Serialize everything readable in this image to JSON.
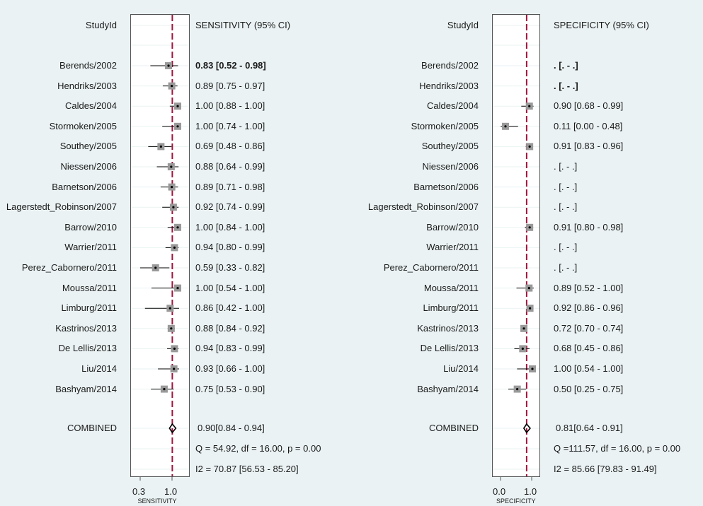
{
  "colors": {
    "background": "#eaf2f3",
    "pooled_line": "#a0143c",
    "marker": "#999999",
    "ci_line": "#000000"
  },
  "chart_data": [
    {
      "type": "forest",
      "measure": "SENSITIVITY",
      "header_study": "StudyId",
      "header_value": "SENSITIVITY (95% CI)",
      "axis_title": "SENSITIVITY",
      "xticks": [
        "0.3",
        "1.0"
      ],
      "xlim": [
        0.2,
        1.0
      ],
      "pooled_line": 0.9,
      "studies": [
        {
          "name": "Berends/2002",
          "est": 0.83,
          "lo": 0.52,
          "hi": 0.98,
          "text": "0.83 [0.52 - 0.98]"
        },
        {
          "name": "Hendriks/2003",
          "est": 0.89,
          "lo": 0.75,
          "hi": 0.97,
          "text": "0.89 [0.75 - 0.97]"
        },
        {
          "name": "Caldes/2004",
          "est": 1.0,
          "lo": 0.88,
          "hi": 1.0,
          "text": "1.00 [0.88 - 1.00]"
        },
        {
          "name": "Stormoken/2005",
          "est": 1.0,
          "lo": 0.74,
          "hi": 1.0,
          "text": "1.00 [0.74 - 1.00]"
        },
        {
          "name": "Southey/2005",
          "est": 0.69,
          "lo": 0.48,
          "hi": 0.86,
          "text": "0.69 [0.48 - 0.86]"
        },
        {
          "name": "Niessen/2006",
          "est": 0.88,
          "lo": 0.64,
          "hi": 0.99,
          "text": "0.88 [0.64 - 0.99]"
        },
        {
          "name": "Barnetson/2006",
          "est": 0.89,
          "lo": 0.71,
          "hi": 0.98,
          "text": "0.89 [0.71 - 0.98]"
        },
        {
          "name": "Lagerstedt_Robinson/2007",
          "est": 0.92,
          "lo": 0.74,
          "hi": 0.99,
          "text": "0.92 [0.74 - 0.99]"
        },
        {
          "name": "Barrow/2010",
          "est": 1.0,
          "lo": 0.84,
          "hi": 1.0,
          "text": "1.00 [0.84 - 1.00]"
        },
        {
          "name": "Warrier/2011",
          "est": 0.94,
          "lo": 0.8,
          "hi": 0.99,
          "text": "0.94 [0.80 - 0.99]"
        },
        {
          "name": "Perez_Cabornero/2011",
          "est": 0.59,
          "lo": 0.33,
          "hi": 0.82,
          "text": "0.59 [0.33 - 0.82]"
        },
        {
          "name": "Moussa/2011",
          "est": 1.0,
          "lo": 0.54,
          "hi": 1.0,
          "text": "1.00 [0.54 - 1.00]"
        },
        {
          "name": "Limburg/2011",
          "est": 0.86,
          "lo": 0.42,
          "hi": 1.0,
          "text": "0.86 [0.42 - 1.00]"
        },
        {
          "name": "Kastrinos/2013",
          "est": 0.88,
          "lo": 0.84,
          "hi": 0.92,
          "text": "0.88 [0.84 - 0.92]"
        },
        {
          "name": "De Lellis/2013",
          "est": 0.94,
          "lo": 0.83,
          "hi": 0.99,
          "text": "0.94 [0.83 - 0.99]"
        },
        {
          "name": "Liu/2014",
          "est": 0.93,
          "lo": 0.66,
          "hi": 1.0,
          "text": "0.93 [0.66 - 1.00]"
        },
        {
          "name": "Bashyam/2014",
          "est": 0.75,
          "lo": 0.53,
          "hi": 0.9,
          "text": "0.75 [0.53 - 0.90]"
        }
      ],
      "combined": {
        "name": "COMBINED",
        "est": 0.9,
        "lo": 0.84,
        "hi": 0.94,
        "text": "0.90[0.84 - 0.94]"
      },
      "heterogeneity_q": "Q = 54.92, df = 16.00, p =  0.00",
      "heterogeneity_i2": "I2 = 70.87 [56.53 - 85.20]"
    },
    {
      "type": "forest",
      "measure": "SPECIFICITY",
      "header_study": "StudyId",
      "header_value": "SPECIFICITY (95% CI)",
      "axis_title": "SPECIFICITY",
      "xticks": [
        "0.0",
        "1.0"
      ],
      "xlim": [
        -0.1,
        1.0
      ],
      "pooled_line": 0.81,
      "studies": [
        {
          "name": "Berends/2002",
          "est": null,
          "lo": null,
          "hi": null,
          "text": ". [. - .]"
        },
        {
          "name": "Hendriks/2003",
          "est": null,
          "lo": null,
          "hi": null,
          "text": ". [. - .]"
        },
        {
          "name": "Caldes/2004",
          "est": 0.9,
          "lo": 0.68,
          "hi": 0.99,
          "text": "0.90 [0.68 - 0.99]"
        },
        {
          "name": "Stormoken/2005",
          "est": 0.11,
          "lo": 0.0,
          "hi": 0.48,
          "text": "0.11 [0.00 - 0.48]"
        },
        {
          "name": "Southey/2005",
          "est": 0.91,
          "lo": 0.83,
          "hi": 0.96,
          "text": "0.91 [0.83 - 0.96]"
        },
        {
          "name": "Niessen/2006",
          "est": null,
          "lo": null,
          "hi": null,
          "text": ". [. - .]"
        },
        {
          "name": "Barnetson/2006",
          "est": null,
          "lo": null,
          "hi": null,
          "text": ". [. - .]"
        },
        {
          "name": "Lagerstedt_Robinson/2007",
          "est": null,
          "lo": null,
          "hi": null,
          "text": ". [. - .]"
        },
        {
          "name": "Barrow/2010",
          "est": 0.91,
          "lo": 0.8,
          "hi": 0.98,
          "text": "0.91 [0.80 - 0.98]"
        },
        {
          "name": "Warrier/2011",
          "est": null,
          "lo": null,
          "hi": null,
          "text": ". [. - .]"
        },
        {
          "name": "Perez_Cabornero/2011",
          "est": null,
          "lo": null,
          "hi": null,
          "text": ". [. - .]"
        },
        {
          "name": "Moussa/2011",
          "est": 0.89,
          "lo": 0.52,
          "hi": 1.0,
          "text": "0.89 [0.52 - 1.00]"
        },
        {
          "name": "Limburg/2011",
          "est": 0.92,
          "lo": 0.86,
          "hi": 0.96,
          "text": "0.92 [0.86 - 0.96]"
        },
        {
          "name": "Kastrinos/2013",
          "est": 0.72,
          "lo": 0.7,
          "hi": 0.74,
          "text": "0.72 [0.70 - 0.74]"
        },
        {
          "name": "De Lellis/2013",
          "est": 0.68,
          "lo": 0.45,
          "hi": 0.86,
          "text": "0.68 [0.45 - 0.86]"
        },
        {
          "name": "Liu/2014",
          "est": 1.0,
          "lo": 0.54,
          "hi": 1.0,
          "text": "1.00 [0.54 - 1.00]"
        },
        {
          "name": "Bashyam/2014",
          "est": 0.5,
          "lo": 0.25,
          "hi": 0.75,
          "text": "0.50 [0.25 - 0.75]"
        }
      ],
      "combined": {
        "name": "COMBINED",
        "est": 0.81,
        "lo": 0.64,
        "hi": 0.91,
        "text": "0.81[0.64 - 0.91]"
      },
      "heterogeneity_q": "Q =111.57, df = 16.00, p =  0.00",
      "heterogeneity_i2": "I2 = 85.66 [79.83 - 91.49]"
    }
  ]
}
